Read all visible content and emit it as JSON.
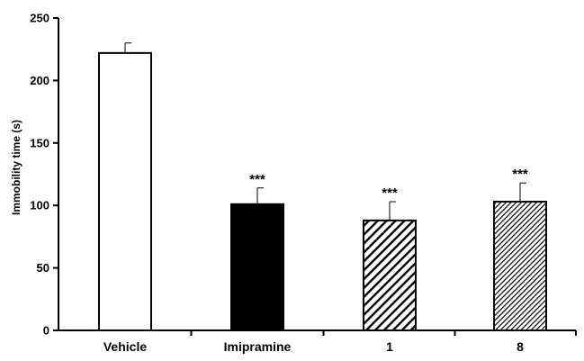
{
  "chart_data": {
    "type": "bar",
    "title": "",
    "xlabel": "",
    "ylabel": "Immobility time (s)",
    "ylim": [
      0,
      250
    ],
    "yticks": [
      0,
      50,
      100,
      150,
      200,
      250
    ],
    "grid": false,
    "categories": [
      "Vehicle",
      "Imipramine",
      "1",
      "8"
    ],
    "values": [
      222,
      101,
      88,
      103
    ],
    "errors": [
      8,
      13,
      15,
      15
    ],
    "significance": [
      "",
      "***",
      "***",
      "***"
    ],
    "fills": [
      "white",
      "black",
      "hatch-wide",
      "hatch-dense"
    ],
    "colors": {
      "bar_edge": "#000000",
      "axis": "#000000",
      "solid_fill": "#000000",
      "empty_fill": "#ffffff"
    }
  }
}
